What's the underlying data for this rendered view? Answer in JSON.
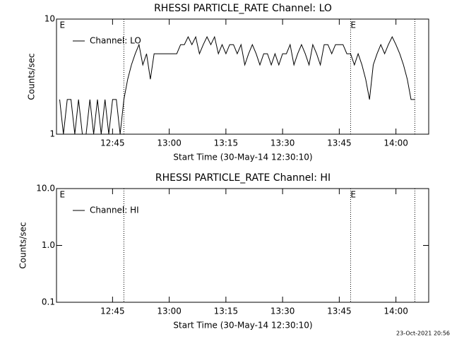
{
  "chart_data": [
    {
      "type": "line",
      "title": "RHESSI PARTICLE_RATE Channel: LO",
      "x_label": "Start Time (30-May-14 12:30:10)",
      "y_label": "Counts/sec",
      "log_y": true,
      "ylim": [
        1,
        10
      ],
      "yticks": [
        1,
        10
      ],
      "xlim": [
        "12:30:10",
        "14:08:40"
      ],
      "xticks": [
        "12:45",
        "13:00",
        "13:15",
        "13:30",
        "13:45",
        "14:00"
      ],
      "vlines": [
        "12:48",
        "13:48",
        "14:05"
      ],
      "annotations": [
        {
          "text": "E",
          "x": "12:31"
        },
        {
          "text": "E",
          "x": "13:48"
        }
      ],
      "x": [
        "12:31",
        "12:32",
        "12:33",
        "12:34",
        "12:35",
        "12:36",
        "12:37",
        "12:38",
        "12:39",
        "12:40",
        "12:41",
        "12:42",
        "12:43",
        "12:44",
        "12:45",
        "12:46",
        "12:47",
        "12:48",
        "12:49",
        "12:50",
        "12:51",
        "12:52",
        "12:53",
        "12:54",
        "12:55",
        "12:56",
        "12:57",
        "12:58",
        "12:59",
        "13:00",
        "13:01",
        "13:02",
        "13:03",
        "13:04",
        "13:05",
        "13:06",
        "13:07",
        "13:08",
        "13:09",
        "13:10",
        "13:11",
        "13:12",
        "13:13",
        "13:14",
        "13:15",
        "13:16",
        "13:17",
        "13:18",
        "13:19",
        "13:20",
        "13:21",
        "13:22",
        "13:23",
        "13:24",
        "13:25",
        "13:26",
        "13:27",
        "13:28",
        "13:29",
        "13:30",
        "13:31",
        "13:32",
        "13:33",
        "13:34",
        "13:35",
        "13:36",
        "13:37",
        "13:38",
        "13:39",
        "13:40",
        "13:41",
        "13:42",
        "13:43",
        "13:44",
        "13:45",
        "13:46",
        "13:47",
        "13:48",
        "13:49",
        "13:50",
        "13:51",
        "13:52",
        "13:53",
        "13:54",
        "13:55",
        "13:56",
        "13:57",
        "13:58",
        "13:59",
        "14:00",
        "14:01",
        "14:02",
        "14:03",
        "14:04",
        "14:05"
      ],
      "series": [
        {
          "name": "Channel: LO",
          "color": "#000000",
          "values": [
            2,
            1,
            2,
            2,
            1,
            2,
            1,
            1,
            2,
            1,
            2,
            1,
            2,
            1,
            2,
            2,
            1,
            2,
            3,
            4,
            5,
            6,
            4,
            5,
            3,
            5,
            5,
            5,
            5,
            5,
            5,
            5,
            6,
            6,
            7,
            6,
            7,
            5,
            6,
            7,
            6,
            7,
            5,
            6,
            5,
            6,
            6,
            5,
            6,
            4,
            5,
            6,
            5,
            4,
            5,
            5,
            4,
            5,
            4,
            5,
            5,
            6,
            4,
            5,
            6,
            5,
            4,
            6,
            5,
            4,
            6,
            6,
            5,
            6,
            6,
            6,
            5,
            5,
            4,
            5,
            4,
            3,
            2,
            4,
            5,
            6,
            5,
            6,
            7,
            6,
            5,
            4,
            3,
            2,
            2
          ]
        }
      ]
    },
    {
      "type": "line",
      "title": "RHESSI PARTICLE_RATE Channel: HI",
      "x_label": "Start Time (30-May-14 12:30:10)",
      "y_label": "Counts/sec",
      "log_y": true,
      "ylim": [
        0.1,
        10
      ],
      "yticks": [
        0.1,
        {
          "value": 1,
          "label": "1.0"
        },
        {
          "value": 10,
          "label": "10.0"
        }
      ],
      "xlim": [
        "12:30:10",
        "14:08:40"
      ],
      "xticks": [
        "12:45",
        "13:00",
        "13:15",
        "13:30",
        "13:45",
        "14:00"
      ],
      "vlines": [
        "12:48",
        "13:48",
        "14:05"
      ],
      "annotations": [
        {
          "text": "E",
          "x": "12:31"
        },
        {
          "text": "E",
          "x": "13:48"
        }
      ],
      "x": [],
      "series": [
        {
          "name": "Channel: HI",
          "color": "#000000",
          "values": []
        }
      ]
    }
  ],
  "footer": "23-Oct-2021 20:56"
}
